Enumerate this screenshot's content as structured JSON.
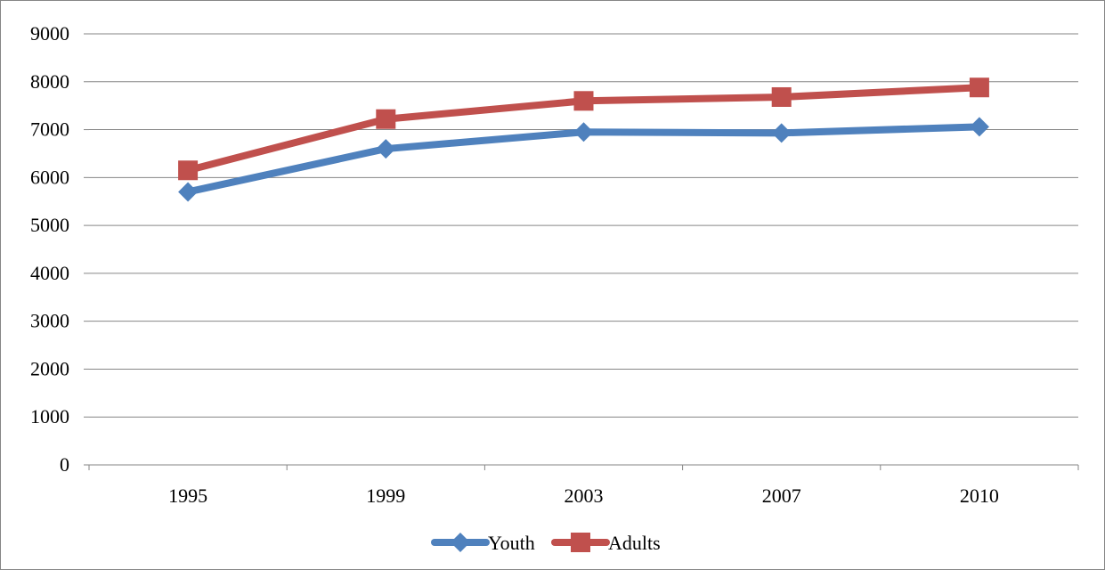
{
  "chart_data": {
    "type": "line",
    "title": "",
    "xlabel": "",
    "ylabel": "",
    "categories": [
      "1995",
      "1999",
      "2003",
      "2007",
      "2010"
    ],
    "y_ticks": [
      "0",
      "1000",
      "2000",
      "3000",
      "4000",
      "5000",
      "6000",
      "7000",
      "8000",
      "9000"
    ],
    "ylim": [
      0,
      9000
    ],
    "grid": "horizontal",
    "legend_position": "bottom",
    "series": [
      {
        "name": "Youth",
        "color": "#4F81BD",
        "marker": "diamond",
        "values": [
          5700,
          6600,
          6950,
          6930,
          7060
        ]
      },
      {
        "name": "Adults",
        "color": "#C0504D",
        "marker": "square",
        "values": [
          6150,
          7220,
          7600,
          7680,
          7880
        ]
      }
    ]
  }
}
